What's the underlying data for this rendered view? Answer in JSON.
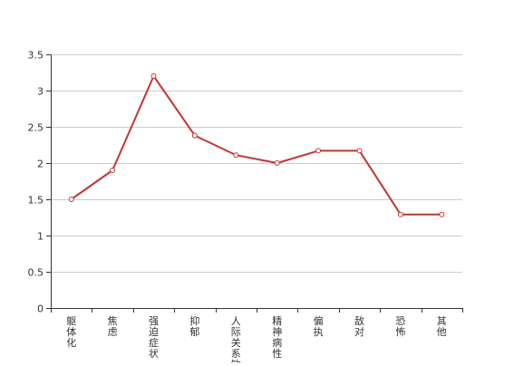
{
  "chart_data": {
    "type": "line",
    "categories": [
      "躯体化",
      "焦虑",
      "强迫症状",
      "抑郁",
      "人际关系敏感",
      "精神病性",
      "偏执",
      "敌对",
      "恐怖",
      "其他"
    ],
    "values": [
      1.5,
      1.9,
      3.2,
      2.38,
      2.11,
      2.0,
      2.17,
      2.17,
      1.29,
      1.29
    ],
    "ylim": [
      0,
      3.5
    ],
    "yticks": [
      0,
      0.5,
      1,
      1.5,
      2,
      2.5,
      3,
      3.5
    ],
    "ytick_labels": [
      "0",
      "0.5",
      "1",
      "1.5",
      "2",
      "2.5",
      "3",
      "3.5"
    ],
    "grid": true,
    "line_color": "#c23531"
  }
}
